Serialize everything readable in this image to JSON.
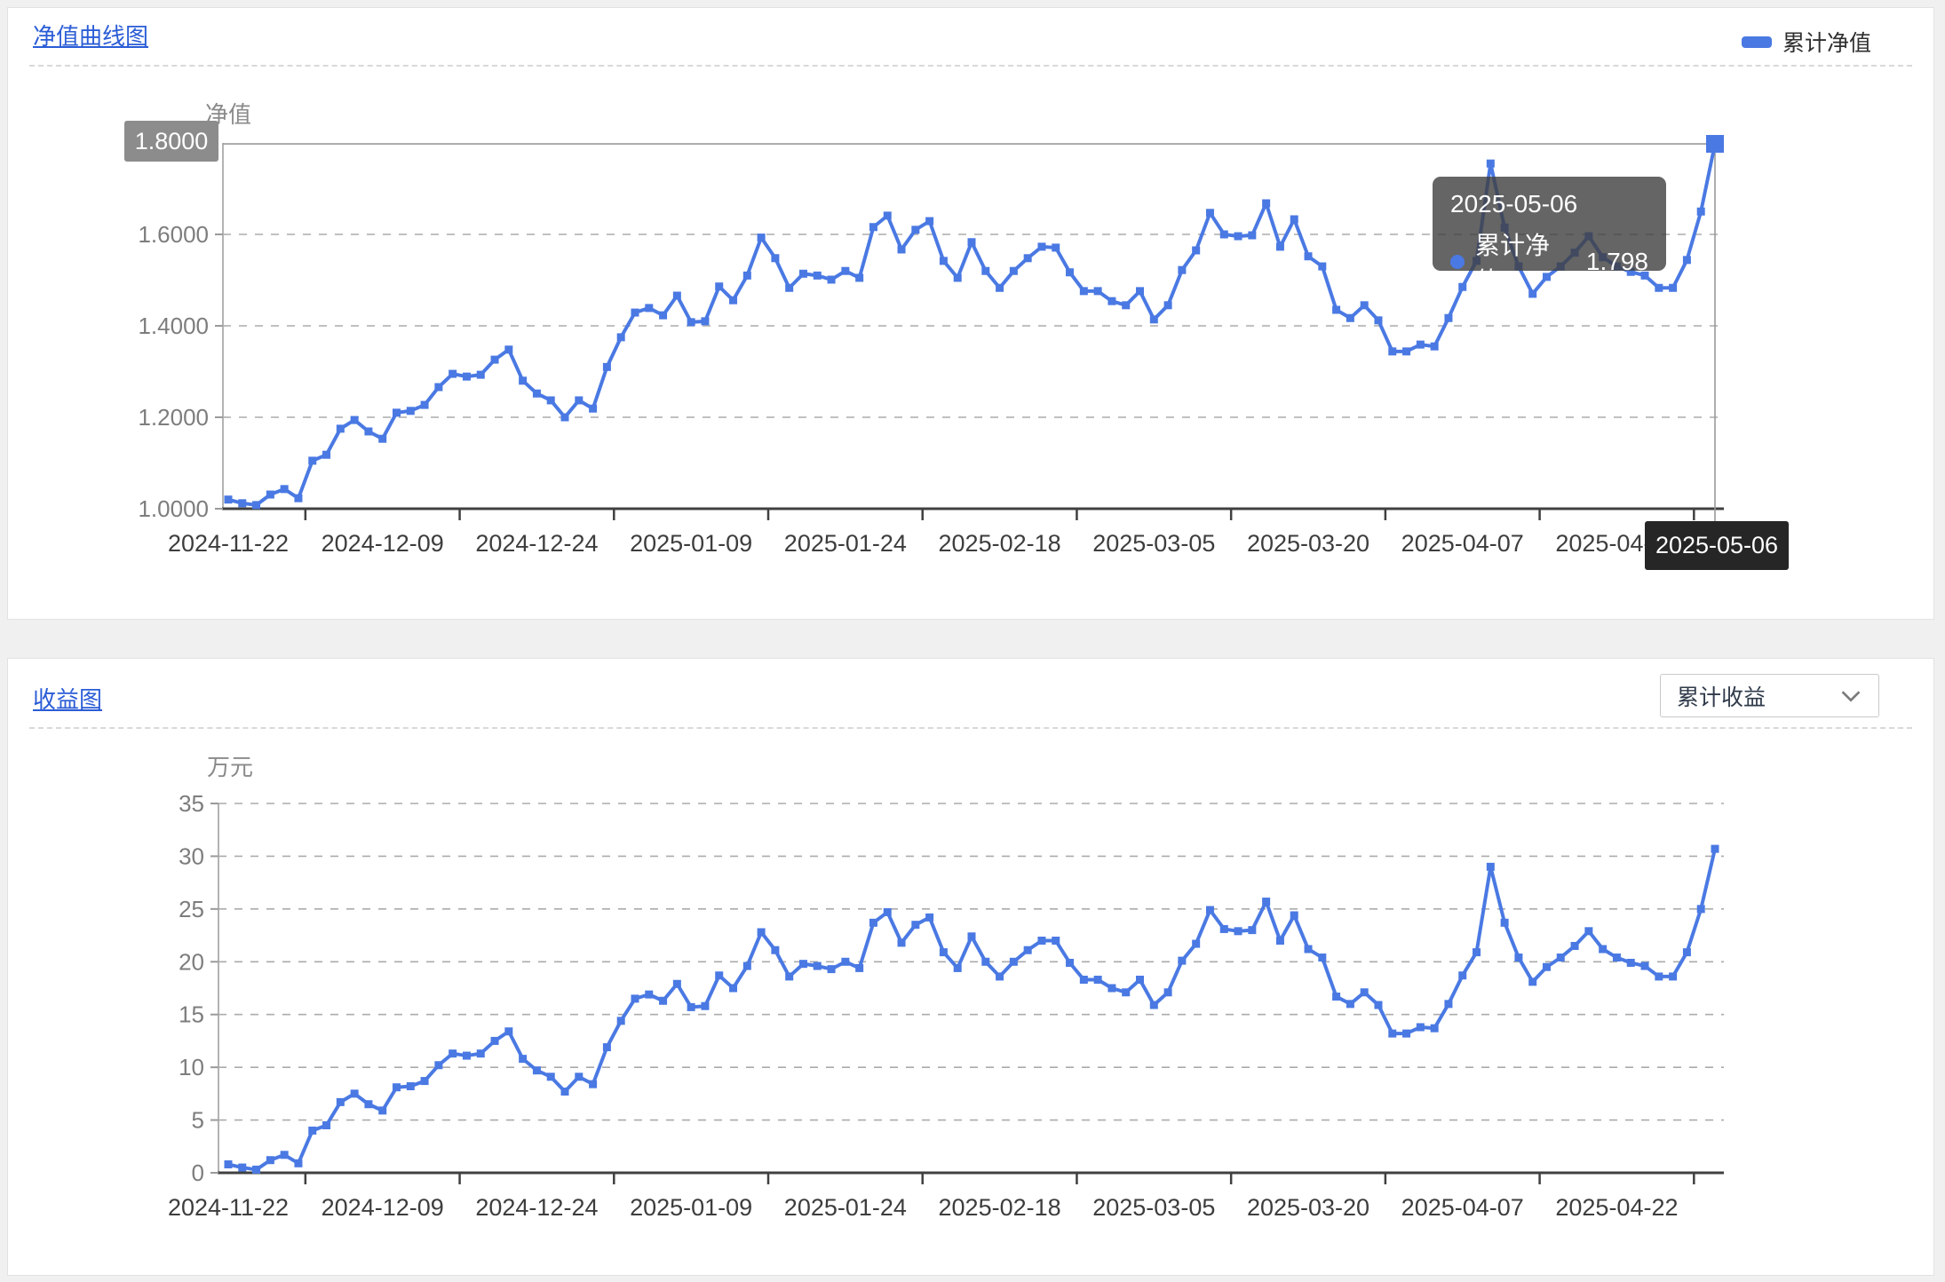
{
  "nav_card": {
    "title": "净值曲线图",
    "legend": {
      "label": "累计净值",
      "color": "#4a79e3"
    },
    "y_axis_title": "净值",
    "axis_pointer": {
      "y_label": "1.8000",
      "x_label": "2025-05-06"
    },
    "tooltip": {
      "date": "2025-05-06",
      "series_label": "累计净值：",
      "value": "1.798",
      "dot_color": "#4a79e3"
    }
  },
  "profit_card": {
    "title": "收益图",
    "dropdown": {
      "selected": "累计收益"
    },
    "y_axis_title": "万元"
  },
  "chart_data": [
    {
      "type": "line",
      "title": "净值曲线图",
      "ylabel": "净值",
      "ylim": [
        1.0,
        1.8
      ],
      "y_ticks": [
        1.6,
        1.4,
        1.2,
        1.0
      ],
      "y_tick_labels": [
        "1.6000",
        "1.4000",
        "1.2000",
        "1.0000"
      ],
      "x_tick_labels": [
        "2024-11-22",
        "2024-12-09",
        "2024-12-24",
        "2025-01-09",
        "2025-01-24",
        "2025-02-18",
        "2025-03-05",
        "2025-03-20",
        "2025-04-07",
        "2025-04-22"
      ],
      "grid": "horizontal-dashed",
      "legend_position": "top-right",
      "highlight": {
        "date": "2025-05-06",
        "series": "累计净值",
        "value": 1.798
      },
      "dates": [
        "2024-11-22",
        "2024-11-25",
        "2024-11-26",
        "2024-11-27",
        "2024-11-28",
        "2024-11-29",
        "2024-12-02",
        "2024-12-03",
        "2024-12-04",
        "2024-12-05",
        "2024-12-06",
        "2024-12-09",
        "2024-12-10",
        "2024-12-11",
        "2024-12-12",
        "2024-12-13",
        "2024-12-16",
        "2024-12-17",
        "2024-12-18",
        "2024-12-19",
        "2024-12-20",
        "2024-12-23",
        "2024-12-24",
        "2024-12-25",
        "2024-12-26",
        "2024-12-27",
        "2024-12-30",
        "2024-12-31",
        "2025-01-02",
        "2025-01-03",
        "2025-01-06",
        "2025-01-07",
        "2025-01-08",
        "2025-01-09",
        "2025-01-10",
        "2025-01-13",
        "2025-01-14",
        "2025-01-15",
        "2025-01-16",
        "2025-01-17",
        "2025-01-20",
        "2025-01-21",
        "2025-01-22",
        "2025-01-23",
        "2025-01-24",
        "2025-01-27",
        "2025-02-05",
        "2025-02-06",
        "2025-02-07",
        "2025-02-10",
        "2025-02-11",
        "2025-02-12",
        "2025-02-13",
        "2025-02-14",
        "2025-02-17",
        "2025-02-18",
        "2025-02-19",
        "2025-02-20",
        "2025-02-21",
        "2025-02-24",
        "2025-02-25",
        "2025-02-26",
        "2025-02-27",
        "2025-02-28",
        "2025-03-03",
        "2025-03-04",
        "2025-03-05",
        "2025-03-06",
        "2025-03-07",
        "2025-03-10",
        "2025-03-11",
        "2025-03-12",
        "2025-03-13",
        "2025-03-14",
        "2025-03-17",
        "2025-03-18",
        "2025-03-19",
        "2025-03-20",
        "2025-03-21",
        "2025-03-24",
        "2025-03-25",
        "2025-03-26",
        "2025-03-27",
        "2025-03-28",
        "2025-03-31",
        "2025-04-01",
        "2025-04-02",
        "2025-04-03",
        "2025-04-07",
        "2025-04-08",
        "2025-04-09",
        "2025-04-10",
        "2025-04-11",
        "2025-04-14",
        "2025-04-15",
        "2025-04-16",
        "2025-04-17",
        "2025-04-18",
        "2025-04-21",
        "2025-04-22",
        "2025-04-23",
        "2025-04-24",
        "2025-04-25",
        "2025-04-28",
        "2025-04-29",
        "2025-04-30",
        "2025-05-06"
      ],
      "series": [
        {
          "name": "累计净值",
          "color": "#4a79e3",
          "values": [
            1.02,
            1.012,
            1.008,
            1.031,
            1.043,
            1.023,
            1.105,
            1.118,
            1.175,
            1.194,
            1.169,
            1.153,
            1.21,
            1.214,
            1.227,
            1.266,
            1.295,
            1.289,
            1.293,
            1.326,
            1.348,
            1.28,
            1.252,
            1.237,
            1.2,
            1.237,
            1.219,
            1.31,
            1.375,
            1.429,
            1.439,
            1.423,
            1.466,
            1.408,
            1.41,
            1.486,
            1.456,
            1.51,
            1.593,
            1.548,
            1.483,
            1.514,
            1.51,
            1.501,
            1.52,
            1.505,
            1.616,
            1.641,
            1.567,
            1.61,
            1.629,
            1.542,
            1.505,
            1.583,
            1.52,
            1.483,
            1.52,
            1.548,
            1.573,
            1.571,
            1.517,
            1.476,
            1.476,
            1.454,
            1.445,
            1.476,
            1.414,
            1.445,
            1.522,
            1.565,
            1.647,
            1.6,
            1.596,
            1.598,
            1.668,
            1.573,
            1.633,
            1.552,
            1.53,
            1.435,
            1.417,
            1.445,
            1.412,
            1.344,
            1.344,
            1.359,
            1.355,
            1.417,
            1.485,
            1.542,
            1.755,
            1.615,
            1.53,
            1.47,
            1.507,
            1.53,
            1.56,
            1.596,
            1.55,
            1.53,
            1.518,
            1.51,
            1.483,
            1.483,
            1.544,
            1.65,
            1.798
          ]
        }
      ]
    },
    {
      "type": "line",
      "title": "收益图",
      "ylabel": "万元",
      "ylim": [
        0,
        35
      ],
      "y_ticks": [
        35,
        30,
        25,
        20,
        15,
        10,
        5,
        0
      ],
      "y_tick_labels": [
        "35",
        "30",
        "25",
        "20",
        "15",
        "10",
        "5",
        "0"
      ],
      "x_tick_labels": [
        "2024-11-22",
        "2024-12-09",
        "2024-12-24",
        "2025-01-09",
        "2025-01-24",
        "2025-02-18",
        "2025-03-05",
        "2025-03-20",
        "2025-04-07",
        "2025-04-22"
      ],
      "grid": "horizontal-dashed",
      "dates": [
        "2024-11-22",
        "2024-11-25",
        "2024-11-26",
        "2024-11-27",
        "2024-11-28",
        "2024-11-29",
        "2024-12-02",
        "2024-12-03",
        "2024-12-04",
        "2024-12-05",
        "2024-12-06",
        "2024-12-09",
        "2024-12-10",
        "2024-12-11",
        "2024-12-12",
        "2024-12-13",
        "2024-12-16",
        "2024-12-17",
        "2024-12-18",
        "2024-12-19",
        "2024-12-20",
        "2024-12-23",
        "2024-12-24",
        "2024-12-25",
        "2024-12-26",
        "2024-12-27",
        "2024-12-30",
        "2024-12-31",
        "2025-01-02",
        "2025-01-03",
        "2025-01-06",
        "2025-01-07",
        "2025-01-08",
        "2025-01-09",
        "2025-01-10",
        "2025-01-13",
        "2025-01-14",
        "2025-01-15",
        "2025-01-16",
        "2025-01-17",
        "2025-01-20",
        "2025-01-21",
        "2025-01-22",
        "2025-01-23",
        "2025-01-24",
        "2025-01-27",
        "2025-02-05",
        "2025-02-06",
        "2025-02-07",
        "2025-02-10",
        "2025-02-11",
        "2025-02-12",
        "2025-02-13",
        "2025-02-14",
        "2025-02-17",
        "2025-02-18",
        "2025-02-19",
        "2025-02-20",
        "2025-02-21",
        "2025-02-24",
        "2025-02-25",
        "2025-02-26",
        "2025-02-27",
        "2025-02-28",
        "2025-03-03",
        "2025-03-04",
        "2025-03-05",
        "2025-03-06",
        "2025-03-07",
        "2025-03-10",
        "2025-03-11",
        "2025-03-12",
        "2025-03-13",
        "2025-03-14",
        "2025-03-17",
        "2025-03-18",
        "2025-03-19",
        "2025-03-20",
        "2025-03-21",
        "2025-03-24",
        "2025-03-25",
        "2025-03-26",
        "2025-03-27",
        "2025-03-28",
        "2025-03-31",
        "2025-04-01",
        "2025-04-02",
        "2025-04-03",
        "2025-04-07",
        "2025-04-08",
        "2025-04-09",
        "2025-04-10",
        "2025-04-11",
        "2025-04-14",
        "2025-04-15",
        "2025-04-16",
        "2025-04-17",
        "2025-04-18",
        "2025-04-21",
        "2025-04-22",
        "2025-04-23",
        "2025-04-24",
        "2025-04-25",
        "2025-04-28",
        "2025-04-29",
        "2025-04-30",
        "2025-05-06"
      ],
      "series": [
        {
          "name": "累计收益",
          "color": "#4a79e3",
          "values": [
            0.8,
            0.5,
            0.3,
            1.2,
            1.7,
            0.9,
            4.0,
            4.5,
            6.7,
            7.5,
            6.5,
            5.9,
            8.1,
            8.2,
            8.7,
            10.2,
            11.3,
            11.1,
            11.3,
            12.5,
            13.4,
            10.8,
            9.7,
            9.1,
            7.7,
            9.1,
            8.4,
            11.9,
            14.4,
            16.5,
            16.9,
            16.3,
            17.9,
            15.7,
            15.8,
            18.7,
            17.5,
            19.6,
            22.8,
            21.1,
            18.6,
            19.8,
            19.6,
            19.3,
            20.0,
            19.4,
            23.7,
            24.7,
            21.8,
            23.5,
            24.2,
            20.9,
            19.4,
            22.4,
            20.0,
            18.6,
            20.0,
            21.1,
            22.0,
            22.0,
            19.9,
            18.3,
            18.3,
            17.5,
            17.1,
            18.3,
            15.9,
            17.1,
            20.1,
            21.7,
            24.9,
            23.1,
            22.9,
            23.0,
            25.7,
            22.0,
            24.4,
            21.2,
            20.4,
            16.7,
            16.0,
            17.1,
            15.9,
            13.2,
            13.2,
            13.8,
            13.7,
            16.0,
            18.7,
            20.9,
            29.0,
            23.7,
            20.4,
            18.1,
            19.5,
            20.4,
            21.5,
            22.9,
            21.2,
            20.4,
            19.9,
            19.6,
            18.6,
            18.6,
            20.9,
            25.0,
            30.7
          ]
        }
      ]
    }
  ]
}
